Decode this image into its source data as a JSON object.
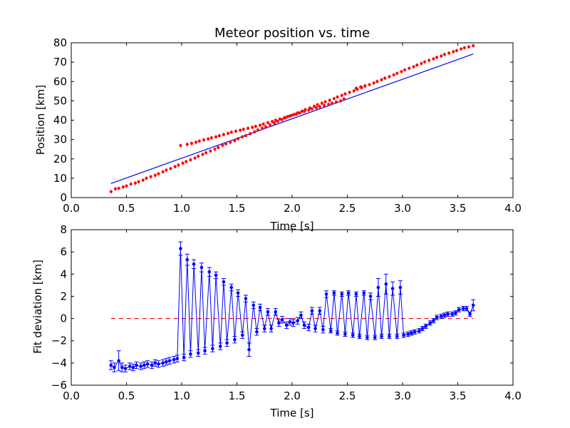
{
  "chart_data": [
    {
      "type": "scatter",
      "title": "Meteor position vs. time",
      "xlabel": "Time [s]",
      "ylabel": "Position [km]",
      "xlim": [
        0.0,
        4.0
      ],
      "ylim": [
        0,
        80
      ],
      "xticks": [
        "0.0",
        "0.5",
        "1.0",
        "1.5",
        "2.0",
        "2.5",
        "3.0",
        "3.5",
        "4.0"
      ],
      "yticks": [
        "0",
        "10",
        "20",
        "30",
        "40",
        "50",
        "60",
        "70",
        "80"
      ],
      "grid": false,
      "colors": {
        "points": "#ff0000",
        "fit": "#0000ff"
      },
      "series": [
        {
          "kind": "points",
          "x": [
            0.36,
            0.4,
            0.43,
            0.47,
            0.5,
            0.54,
            0.58,
            0.61,
            0.65,
            0.68,
            0.72,
            0.76,
            0.79,
            0.83,
            0.86,
            0.9,
            0.94,
            0.97,
            1.01,
            1.04,
            1.08,
            1.12,
            1.15,
            1.19,
            1.22,
            1.26,
            1.3,
            1.33,
            1.37,
            1.4,
            1.44,
            1.48,
            1.51,
            1.55,
            1.58,
            1.62,
            1.66,
            1.69,
            1.73,
            1.76,
            1.8,
            1.84,
            1.87,
            1.91,
            1.94,
            1.98,
            2.02,
            2.05,
            2.09,
            2.12,
            2.16,
            2.2,
            2.23,
            2.27,
            2.3,
            2.34,
            2.38,
            2.41,
            2.45,
            2.48,
            2.52,
            2.56,
            2.59,
            2.63,
            2.66,
            2.7,
            2.74,
            2.77,
            2.81,
            2.84,
            2.88,
            2.92,
            2.95,
            2.99,
            3.02,
            3.06,
            3.1,
            3.13,
            3.17,
            3.2,
            3.24,
            3.28,
            3.31,
            3.35,
            3.38,
            3.42,
            3.46,
            3.49,
            3.53,
            3.56,
            3.6,
            3.64,
            0.99,
            1.05,
            1.09,
            1.13,
            1.16,
            1.2,
            1.24,
            1.27,
            1.31,
            1.34,
            1.38,
            1.42,
            1.45,
            1.49,
            1.53,
            1.56,
            1.6,
            1.64,
            1.67,
            1.71,
            1.74,
            1.78,
            1.82,
            1.85,
            1.89,
            1.93,
            1.96,
            2.0,
            2.04,
            2.07,
            2.11,
            2.15,
            2.18,
            2.22,
            2.25,
            2.29,
            2.33,
            2.36,
            2.4,
            2.44,
            2.47,
            2.58,
            2.62,
            2.66
          ],
          "y": [
            3.1,
            4.5,
            4.8,
            5.5,
            6.0,
            7.0,
            7.5,
            8.2,
            9.0,
            10.0,
            10.8,
            11.5,
            12.3,
            13.3,
            14.2,
            15.0,
            16.0,
            16.8,
            17.8,
            18.6,
            19.5,
            20.4,
            21.4,
            22.3,
            23.2,
            24.1,
            25.0,
            25.9,
            27.0,
            27.8,
            28.6,
            29.4,
            30.4,
            31.4,
            32.0,
            33.0,
            34.0,
            35.0,
            35.9,
            36.7,
            37.6,
            38.5,
            39.4,
            40.3,
            41.3,
            42.2,
            43.0,
            43.8,
            44.7,
            45.5,
            46.3,
            47.2,
            48.0,
            48.8,
            49.5,
            50.3,
            51.2,
            52.0,
            52.8,
            53.6,
            54.4,
            55.2,
            56.0,
            56.8,
            57.6,
            58.4,
            59.2,
            60.0,
            60.9,
            61.7,
            62.5,
            63.4,
            64.2,
            65.1,
            66.0,
            66.8,
            67.6,
            68.5,
            69.3,
            70.1,
            70.9,
            71.7,
            72.5,
            73.2,
            74.0,
            74.7,
            75.4,
            76.0,
            76.8,
            77.4,
            77.9,
            78.5,
            26.9,
            27.5,
            28.0,
            28.6,
            29.2,
            29.8,
            30.3,
            30.9,
            31.4,
            32.0,
            32.6,
            33.2,
            33.8,
            34.3,
            34.8,
            35.3,
            35.8,
            36.3,
            36.8,
            37.4,
            38.0,
            38.7,
            39.3,
            40.0,
            40.6,
            41.3,
            41.9,
            42.6,
            43.2,
            43.8,
            44.5,
            45.2,
            45.8,
            46.4,
            47.0,
            47.6,
            48.2,
            48.8,
            49.4,
            50.0,
            51.0,
            56.5,
            57.2,
            57.8
          ]
        },
        {
          "kind": "fit-line",
          "x": [
            0.36,
            3.64
          ],
          "y": [
            7.3,
            74.2
          ]
        }
      ]
    },
    {
      "type": "line",
      "xlabel": "Time [s]",
      "ylabel": "Fit deviation [km]",
      "xlim": [
        0.0,
        4.0
      ],
      "ylim": [
        -6,
        8
      ],
      "xticks": [
        "0.0",
        "0.5",
        "1.0",
        "1.5",
        "2.0",
        "2.5",
        "3.0",
        "3.5",
        "4.0"
      ],
      "yticks": [
        "−6",
        "−4",
        "−2",
        "0",
        "2",
        "4",
        "6",
        "8"
      ],
      "grid": false,
      "colors": {
        "line": "#0000ff",
        "zero_line": "#ff0000"
      },
      "series": [
        {
          "kind": "deviation",
          "x": [
            0.36,
            0.39,
            0.43,
            0.46,
            0.49,
            0.53,
            0.56,
            0.59,
            0.63,
            0.66,
            0.69,
            0.73,
            0.76,
            0.79,
            0.83,
            0.86,
            0.89,
            0.93,
            0.96,
            0.99,
            1.02,
            1.05,
            1.08,
            1.11,
            1.15,
            1.18,
            1.21,
            1.25,
            1.28,
            1.31,
            1.35,
            1.38,
            1.41,
            1.45,
            1.48,
            1.51,
            1.55,
            1.58,
            1.61,
            1.65,
            1.68,
            1.71,
            1.75,
            1.78,
            1.81,
            1.85,
            1.88,
            1.91,
            1.95,
            1.98,
            2.01,
            2.05,
            2.08,
            2.11,
            2.15,
            2.18,
            2.21,
            2.25,
            2.28,
            2.31,
            2.35,
            2.38,
            2.41,
            2.45,
            2.48,
            2.51,
            2.55,
            2.58,
            2.61,
            2.65,
            2.68,
            2.71,
            2.75,
            2.78,
            2.81,
            2.85,
            2.88,
            2.91,
            2.95,
            2.98,
            3.01,
            3.05,
            3.08,
            3.11,
            3.15,
            3.18,
            3.21,
            3.25,
            3.28,
            3.31,
            3.35,
            3.38,
            3.41,
            3.45,
            3.48,
            3.51,
            3.55,
            3.58,
            3.61,
            3.64
          ],
          "y": [
            -4.2,
            -4.4,
            -3.8,
            -4.4,
            -4.5,
            -4.3,
            -4.4,
            -4.2,
            -4.3,
            -4.2,
            -4.1,
            -4.2,
            -4.0,
            -4.1,
            -4.0,
            -3.9,
            -3.8,
            -3.7,
            -3.6,
            6.3,
            -3.5,
            5.3,
            -3.2,
            4.9,
            -3.1,
            4.6,
            -2.9,
            4.2,
            -2.7,
            3.9,
            -2.5,
            3.3,
            -2.2,
            2.8,
            -1.9,
            2.3,
            -1.5,
            1.8,
            -2.8,
            1.2,
            -1.2,
            1.0,
            -0.9,
            0.6,
            -0.9,
            0.6,
            -0.4,
            -0.1,
            -0.6,
            -0.3,
            -0.4,
            -0.2,
            0.3,
            -0.6,
            -0.8,
            0.7,
            -0.9,
            0.7,
            -1.0,
            2.2,
            -1.1,
            2.3,
            -1.3,
            2.2,
            -1.4,
            2.3,
            -1.5,
            2.2,
            -1.6,
            2.3,
            -1.7,
            2.0,
            -1.7,
            2.8,
            -1.6,
            3.1,
            -1.6,
            2.7,
            -1.6,
            2.8,
            -1.5,
            -1.4,
            -1.3,
            -1.2,
            -1.1,
            -0.9,
            -0.7,
            -0.4,
            -0.2,
            0.1,
            0.2,
            0.3,
            0.4,
            0.4,
            0.5,
            0.8,
            0.9,
            0.9,
            0.4,
            1.2
          ],
          "err": [
            0.4,
            0.4,
            0.9,
            0.4,
            0.3,
            0.3,
            0.3,
            0.3,
            0.3,
            0.3,
            0.3,
            0.3,
            0.3,
            0.3,
            0.3,
            0.3,
            0.3,
            0.3,
            0.3,
            0.6,
            0.3,
            0.5,
            0.3,
            0.4,
            0.3,
            0.4,
            0.3,
            0.4,
            0.3,
            0.3,
            0.3,
            0.3,
            0.3,
            0.3,
            0.3,
            0.3,
            0.3,
            0.3,
            0.6,
            0.3,
            0.3,
            0.3,
            0.3,
            0.3,
            0.3,
            0.3,
            0.3,
            0.3,
            0.3,
            0.3,
            0.3,
            0.3,
            0.3,
            0.3,
            0.3,
            0.3,
            0.3,
            0.3,
            0.3,
            0.3,
            0.2,
            0.2,
            0.2,
            0.2,
            0.2,
            0.2,
            0.2,
            0.2,
            0.2,
            0.2,
            0.2,
            0.3,
            0.2,
            0.8,
            0.2,
            0.9,
            0.2,
            0.6,
            0.2,
            0.6,
            0.2,
            0.2,
            0.2,
            0.2,
            0.2,
            0.2,
            0.2,
            0.2,
            0.2,
            0.2,
            0.2,
            0.2,
            0.2,
            0.2,
            0.2,
            0.2,
            0.2,
            0.2,
            0.2,
            0.5
          ]
        },
        {
          "kind": "zero-line",
          "x": [
            0.36,
            3.64
          ],
          "y": [
            0,
            0
          ]
        }
      ]
    }
  ]
}
